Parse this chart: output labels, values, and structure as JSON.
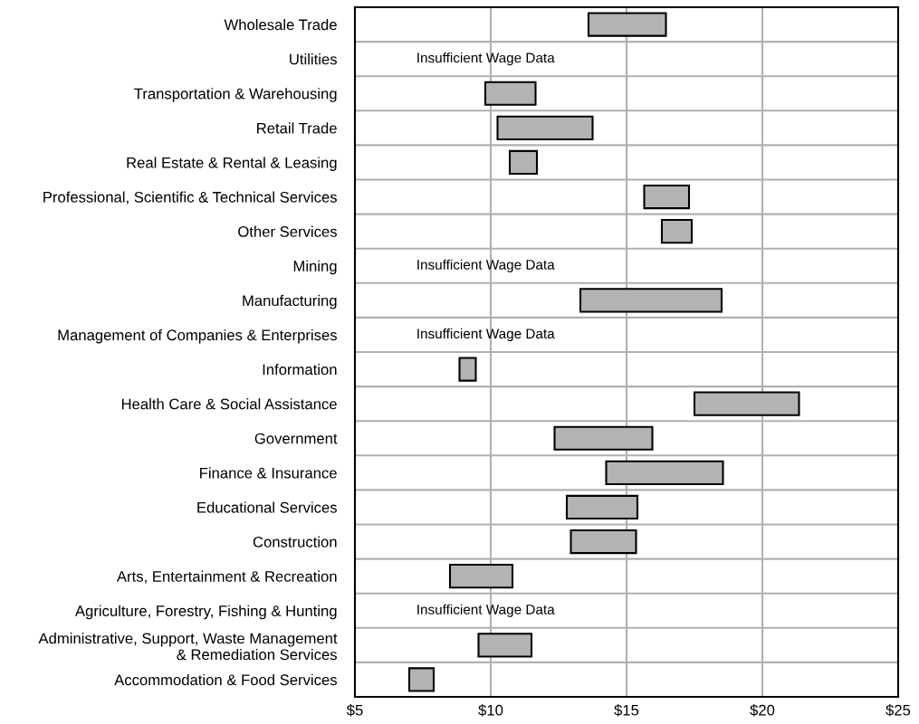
{
  "chart_data": {
    "type": "bar",
    "orientation": "horizontal",
    "categories": [
      "Wholesale Trade",
      "Utilities",
      "Transportation & Warehousing",
      "Retail Trade",
      "Real Estate & Rental & Leasing",
      "Professional, Scientific & Technical Services",
      "Other Services",
      "Mining",
      "Manufacturing",
      "Management of Companies & Enterprises",
      "Information",
      "Health Care & Social Assistance",
      "Government",
      "Finance & Insurance",
      "Educational Services",
      "Construction",
      "Arts, Entertainment & Recreation",
      "Agriculture, Forestry, Fishing & Hunting",
      "Administrative, Support, Waste Management\n& Remediation Services",
      "Accommodation & Food Services"
    ],
    "base": [
      13.6,
      null,
      9.8,
      10.25,
      10.7,
      15.65,
      16.3,
      null,
      13.3,
      null,
      8.85,
      17.5,
      12.35,
      14.25,
      12.8,
      12.95,
      8.5,
      null,
      9.55,
      7.0
    ],
    "values": [
      2.85,
      null,
      1.85,
      3.5,
      1.0,
      1.65,
      1.1,
      null,
      5.2,
      null,
      0.6,
      3.85,
      3.6,
      4.3,
      2.6,
      2.4,
      2.3,
      null,
      1.95,
      0.9
    ],
    "color": "#b3b3b3",
    "xlim": [
      5,
      25
    ],
    "xticks": [
      {
        "value": 5,
        "label": "$5"
      },
      {
        "value": 10,
        "label": "$10"
      },
      {
        "value": 15,
        "label": "$15"
      },
      {
        "value": 20,
        "label": "$20"
      },
      {
        "value": 25,
        "label": "$25"
      }
    ],
    "grid": true,
    "annotations": [
      "Insufficient Wage Data",
      "Insufficient Wage Data",
      "Insufficient Wage Data",
      "Insufficient Wage Data"
    ]
  }
}
